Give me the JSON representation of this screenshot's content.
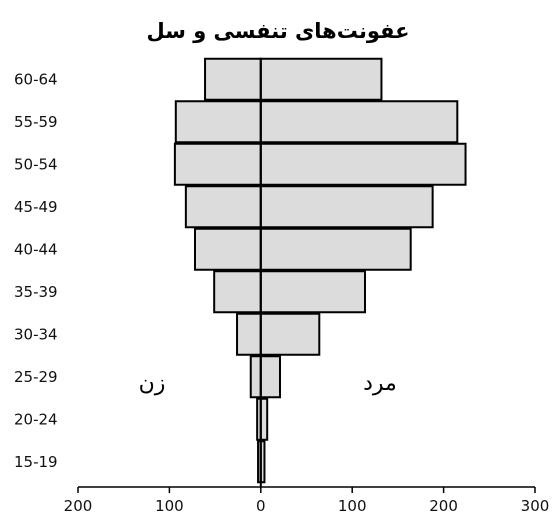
{
  "chart_data": {
    "type": "bar",
    "orientation": "horizontal-diverging",
    "title": "عفونت‌های تنفسی و سل",
    "categories": [
      "15-19",
      "20-24",
      "25-29",
      "30-34",
      "35-39",
      "40-44",
      "45-49",
      "50-54",
      "55-59",
      "60-64"
    ],
    "series": [
      {
        "name": "زن",
        "side": "left",
        "values": [
          3,
          4,
          11,
          26,
          51,
          72,
          82,
          94,
          93,
          61
        ]
      },
      {
        "name": "مرد",
        "side": "right",
        "values": [
          4,
          7,
          21,
          64,
          114,
          164,
          188,
          224,
          215,
          132
        ]
      }
    ],
    "xlim": [
      -200,
      300
    ],
    "xticks": [
      -200,
      -100,
      0,
      100,
      200,
      300
    ],
    "xtick_labels": [
      "200",
      "100",
      "0",
      "100",
      "200",
      "300"
    ],
    "annotations": {
      "left": "زن",
      "right": "مرد"
    },
    "bar_fill": "#dcdcdc",
    "bar_stroke": "#000000"
  }
}
